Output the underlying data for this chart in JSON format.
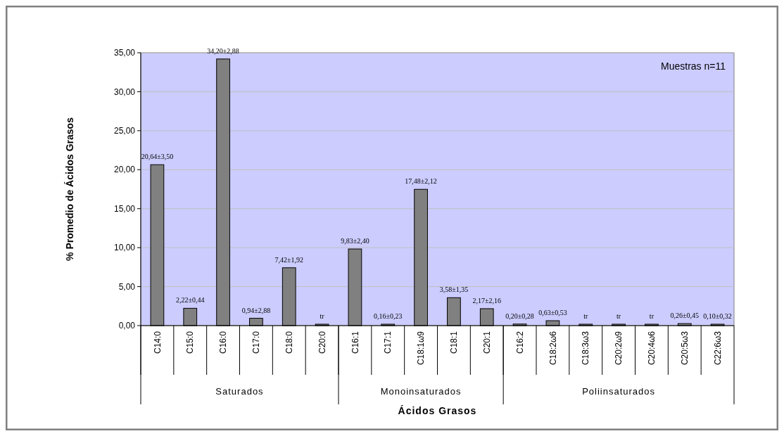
{
  "chart_data": {
    "type": "bar",
    "xlabel": "Ácidos Grasos",
    "ylabel": "% Promedio de Ácidos Grasos",
    "categories": [
      "C14:0",
      "C15:0",
      "C16:0",
      "C17:0",
      "C18:0",
      "C20:0",
      "C16:1",
      "C17:1",
      "C18:1ω9",
      "C18:1",
      "C20:1",
      "C16:2",
      "C18:2ω6",
      "C18:3ω3",
      "C20:2ω9",
      "C20:4ω6",
      "C20:5ω3",
      "C22:6ω3"
    ],
    "series": [
      {
        "color": "#808080",
        "values": [
          20.64,
          2.22,
          34.2,
          0.94,
          7.42,
          0,
          9.83,
          0.16,
          17.48,
          3.58,
          2.17,
          0.2,
          0.63,
          0,
          0,
          0,
          0.26,
          0.1
        ],
        "value_labels": [
          "20,64±3,50",
          "2,22±0,44",
          "34,20±2,88",
          "0,94±2,88",
          "7,42±1,92",
          "tr",
          "9,83±2,40",
          "0,16±0,23",
          "17,48±2,12",
          "3,58±1,35",
          "2,17±2,16",
          "0,20±0,28",
          "0,63±0,53",
          "tr",
          "tr",
          "tr",
          "0,26±0,45",
          "0,10±0,32"
        ]
      }
    ],
    "ylim": [
      0,
      35
    ],
    "yticks": [
      {
        "value": 0,
        "label": "0,00"
      },
      {
        "value": 5,
        "label": "5,00"
      },
      {
        "value": 10,
        "label": "10,00"
      },
      {
        "value": 15,
        "label": "15,00"
      },
      {
        "value": 20,
        "label": "20,00"
      },
      {
        "value": 25,
        "label": "25,00"
      },
      {
        "value": 30,
        "label": "30,00"
      },
      {
        "value": 35,
        "label": "35,00"
      }
    ],
    "grid": "y",
    "annotations": [
      "Muestras n=11",
      "Saturados",
      "Monoinsaturados",
      "Poliinsaturados"
    ]
  }
}
